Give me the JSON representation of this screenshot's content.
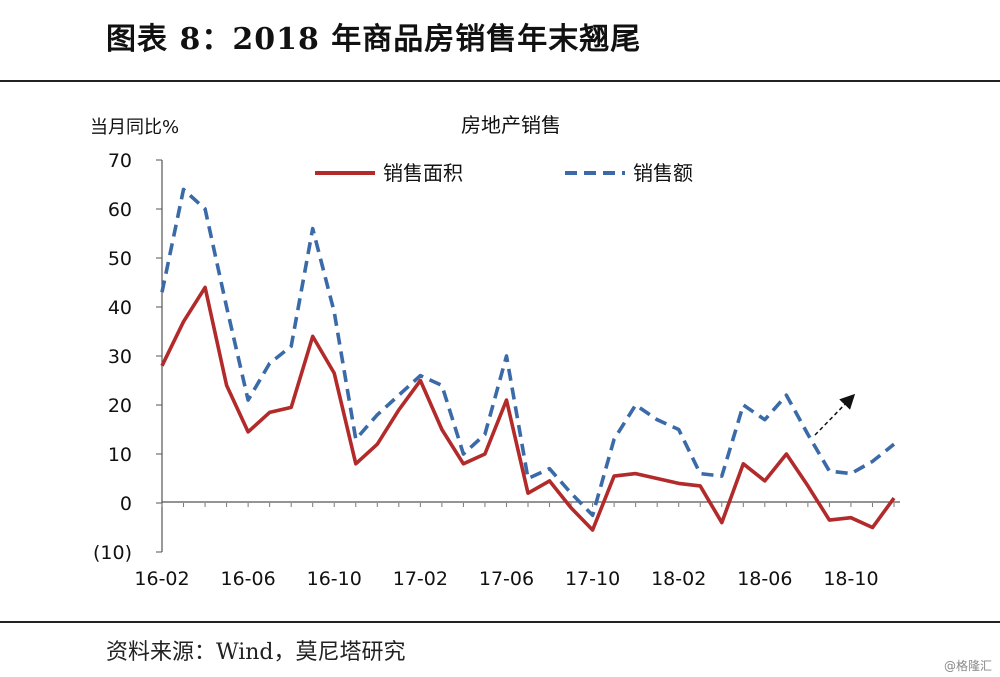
{
  "figure_title": "图表 8：2018 年商品房销售年末翘尾",
  "source": "资料来源：Wind，莫尼塔研究",
  "watermark": "@格隆汇",
  "colors": {
    "area_series": "#b22a2a",
    "sales_series": "#3a6aa8",
    "negative_tick": "#c00000"
  },
  "chart_data": {
    "type": "line",
    "title": "房地产销售",
    "ylabel": "当月同比%",
    "xlabel": "",
    "ylim": [
      -10,
      70
    ],
    "yticks": [
      {
        "value": 70,
        "label": "70"
      },
      {
        "value": 60,
        "label": "60"
      },
      {
        "value": 50,
        "label": "50"
      },
      {
        "value": 40,
        "label": "40"
      },
      {
        "value": 30,
        "label": "30"
      },
      {
        "value": 20,
        "label": "20"
      },
      {
        "value": 10,
        "label": "10"
      },
      {
        "value": 0,
        "label": "0"
      },
      {
        "value": -10,
        "label": "(10)"
      }
    ],
    "x": [
      "16-02",
      "16-03",
      "16-04",
      "16-05",
      "16-06",
      "16-07",
      "16-08",
      "16-09",
      "16-10",
      "16-11",
      "16-12",
      "17-01",
      "17-02",
      "17-03",
      "17-04",
      "17-05",
      "17-06",
      "17-07",
      "17-08",
      "17-09",
      "17-10",
      "17-11",
      "17-12",
      "18-01",
      "18-02",
      "18-03",
      "18-04",
      "18-05",
      "18-06",
      "18-07",
      "18-08",
      "18-09",
      "18-10",
      "18-11",
      "18-12"
    ],
    "xtick_labels": [
      "16-02",
      "16-06",
      "16-10",
      "17-02",
      "17-06",
      "17-10",
      "18-02",
      "18-06",
      "18-10"
    ],
    "legend_position": "top-center",
    "grid": false,
    "series": [
      {
        "name": "销售面积",
        "style": "solid",
        "values": [
          28,
          37,
          44,
          24,
          14.5,
          18.5,
          19.5,
          34,
          26.5,
          8,
          12,
          19,
          25,
          15,
          8,
          10,
          21,
          2,
          4.5,
          -1,
          -5.5,
          5.5,
          6,
          5,
          4,
          3.5,
          -4,
          8,
          4.5,
          10,
          3.5,
          -3.5,
          -3,
          -5,
          1
        ]
      },
      {
        "name": "销售额",
        "style": "dashed",
        "values": [
          43,
          64,
          60,
          40,
          21,
          28.5,
          32,
          56,
          39,
          13,
          18,
          22,
          26,
          24,
          10,
          14,
          30,
          5,
          7,
          2,
          -2.5,
          13,
          20,
          17,
          15,
          6,
          5.5,
          20,
          17,
          22,
          14,
          6.5,
          6,
          8.5,
          12
        ]
      }
    ],
    "annotation": "trend-up-arrow"
  }
}
